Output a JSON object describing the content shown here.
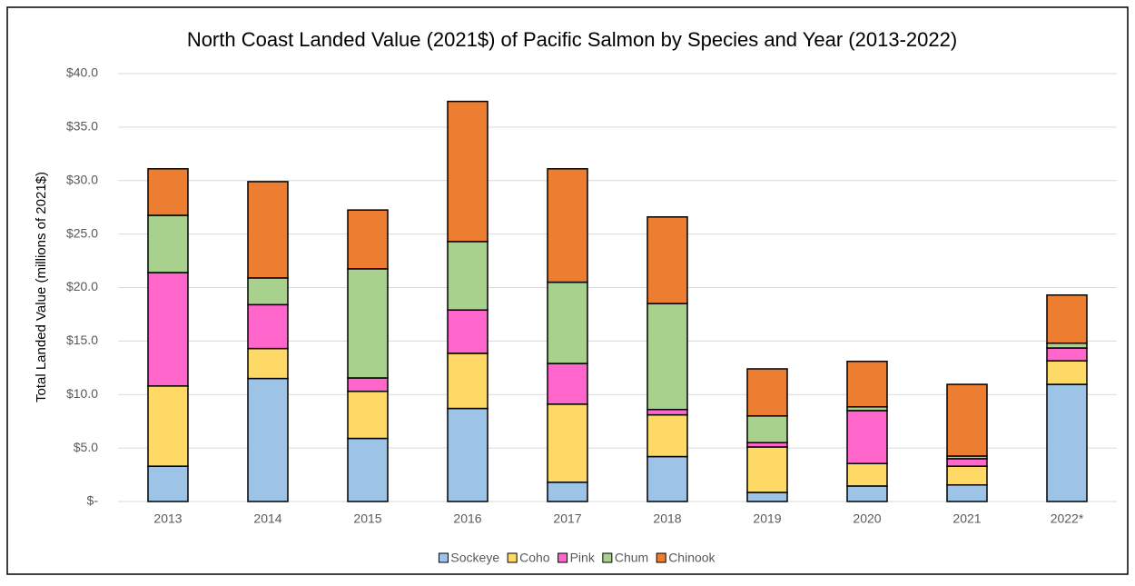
{
  "chart_data": {
    "type": "stacked_bar",
    "title": "North Coast Landed Value (2021$) of Pacific Salmon by Species and Year (2013-2022)",
    "y_label": "Total Landed Value (millions of 2021$)",
    "categories": [
      "2013",
      "2014",
      "2015",
      "2016",
      "2017",
      "2018",
      "2019",
      "2020",
      "2021",
      "2022*"
    ],
    "series": [
      {
        "name": "Sockeye",
        "color": "#9dc3e6",
        "values": [
          3.3,
          11.5,
          5.9,
          8.7,
          1.8,
          4.2,
          0.85,
          1.45,
          1.55,
          10.95
        ]
      },
      {
        "name": "Coho",
        "color": "#ffd966",
        "values": [
          7.5,
          2.8,
          4.4,
          5.15,
          7.3,
          3.9,
          4.25,
          2.1,
          1.75,
          2.2
        ]
      },
      {
        "name": "Pink",
        "color": "#ff66cc",
        "values": [
          10.6,
          4.1,
          1.25,
          4.05,
          3.8,
          0.5,
          0.4,
          4.95,
          0.7,
          1.2
        ]
      },
      {
        "name": "Chum",
        "color": "#a9d18e",
        "values": [
          5.35,
          2.5,
          10.2,
          6.4,
          7.6,
          9.9,
          2.5,
          0.35,
          0.25,
          0.45
        ]
      },
      {
        "name": "Chinook",
        "color": "#ed7d31",
        "values": [
          4.35,
          9.0,
          5.5,
          13.1,
          10.6,
          8.1,
          4.4,
          4.25,
          6.7,
          4.5
        ]
      }
    ],
    "ylim": [
      0,
      40
    ],
    "yticks": [
      {
        "value": 0,
        "label": "$-"
      },
      {
        "value": 5,
        "label": "$5.0"
      },
      {
        "value": 10,
        "label": "$10.0"
      },
      {
        "value": 15,
        "label": "$15.0"
      },
      {
        "value": 20,
        "label": "$20.0"
      },
      {
        "value": 25,
        "label": "$25.0"
      },
      {
        "value": 30,
        "label": "$30.0"
      },
      {
        "value": 35,
        "label": "$35.0"
      },
      {
        "value": 40,
        "label": "$40.0"
      }
    ],
    "grid": true,
    "legend": "bottom"
  }
}
